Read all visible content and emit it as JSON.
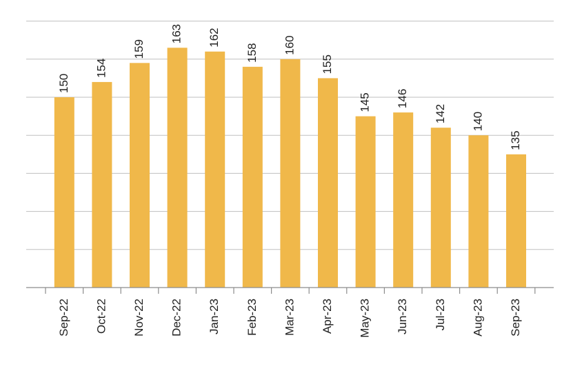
{
  "chart_data": {
    "type": "bar",
    "categories": [
      "Sep-22",
      "Oct-22",
      "Nov-22",
      "Dec-22",
      "Jan-23",
      "Feb-23",
      "Mar-23",
      "Apr-23",
      "May-23",
      "Jun-23",
      "Jul-23",
      "Aug-23",
      "Sep-23"
    ],
    "values": [
      150,
      154,
      159,
      163,
      162,
      158,
      160,
      155,
      145,
      146,
      142,
      140,
      135
    ],
    "data_labels": [
      "150",
      "154",
      "159",
      "163",
      "162",
      "158",
      "160",
      "155",
      "145",
      "146",
      "142",
      "140",
      "135"
    ],
    "ylim": [
      100,
      170
    ],
    "y_grid_step": 10,
    "grid": true,
    "y_tick_labels_shown": false,
    "bar_color": "#F0B84A",
    "title": "",
    "xlabel": "",
    "ylabel": ""
  }
}
